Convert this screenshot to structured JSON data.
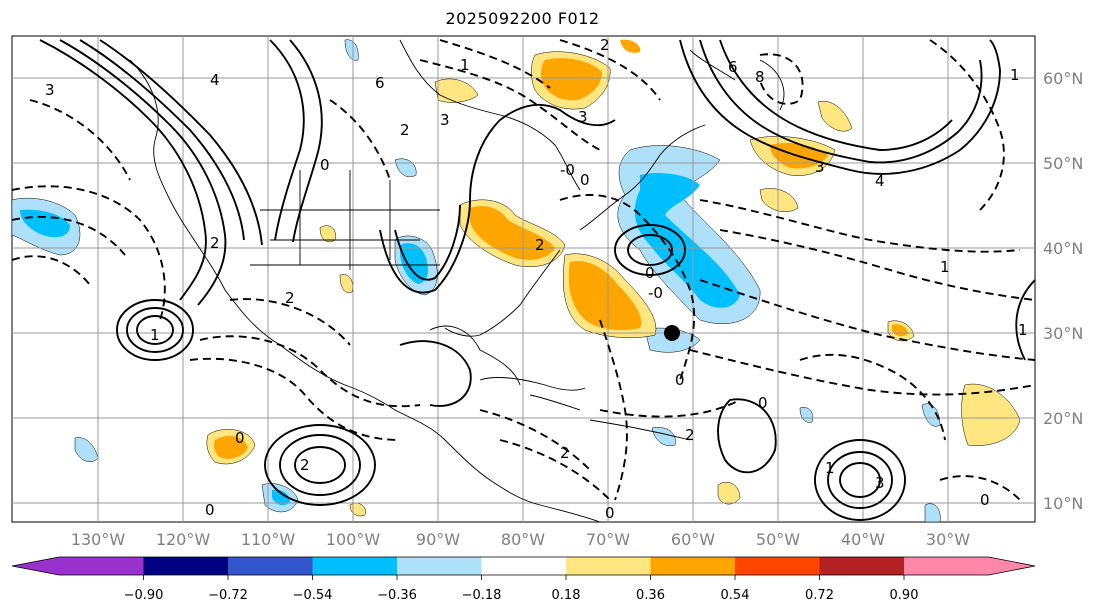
{
  "title": "2025092200 F012",
  "map": {
    "lon_labels": [
      "130°W",
      "120°W",
      "110°W",
      "100°W",
      "90°W",
      "80°W",
      "70°W",
      "60°W",
      "50°W",
      "40°W",
      "30°W"
    ],
    "lat_labels": [
      "60°N",
      "50°N",
      "40°N",
      "30°N",
      "20°N",
      "10°N"
    ],
    "contour_labels": [
      "3",
      "4",
      "3",
      "2",
      "6",
      "0",
      "2",
      "1",
      "0",
      "-0",
      "0",
      "1",
      "0",
      "1",
      "6",
      "8",
      "3",
      "4",
      "2",
      "3",
      "2",
      "2",
      "3",
      "0",
      "2",
      "1",
      "0",
      "2",
      "1",
      "2",
      "0",
      "-0",
      "0",
      "0",
      "1"
    ],
    "marker": "storm-position-dot"
  },
  "colorbar": {
    "ticks": [
      "−0.90",
      "−0.72",
      "−0.54",
      "−0.36",
      "−0.18",
      "0.18",
      "0.36",
      "0.54",
      "0.72",
      "0.90"
    ],
    "colors": [
      "#9932cc",
      "#000080",
      "#3355cc",
      "#00bfff",
      "#aee0fa",
      "#ffffff",
      "#ffe680",
      "#ffa500",
      "#ff4500",
      "#b22222",
      "#ff88aa"
    ]
  }
}
